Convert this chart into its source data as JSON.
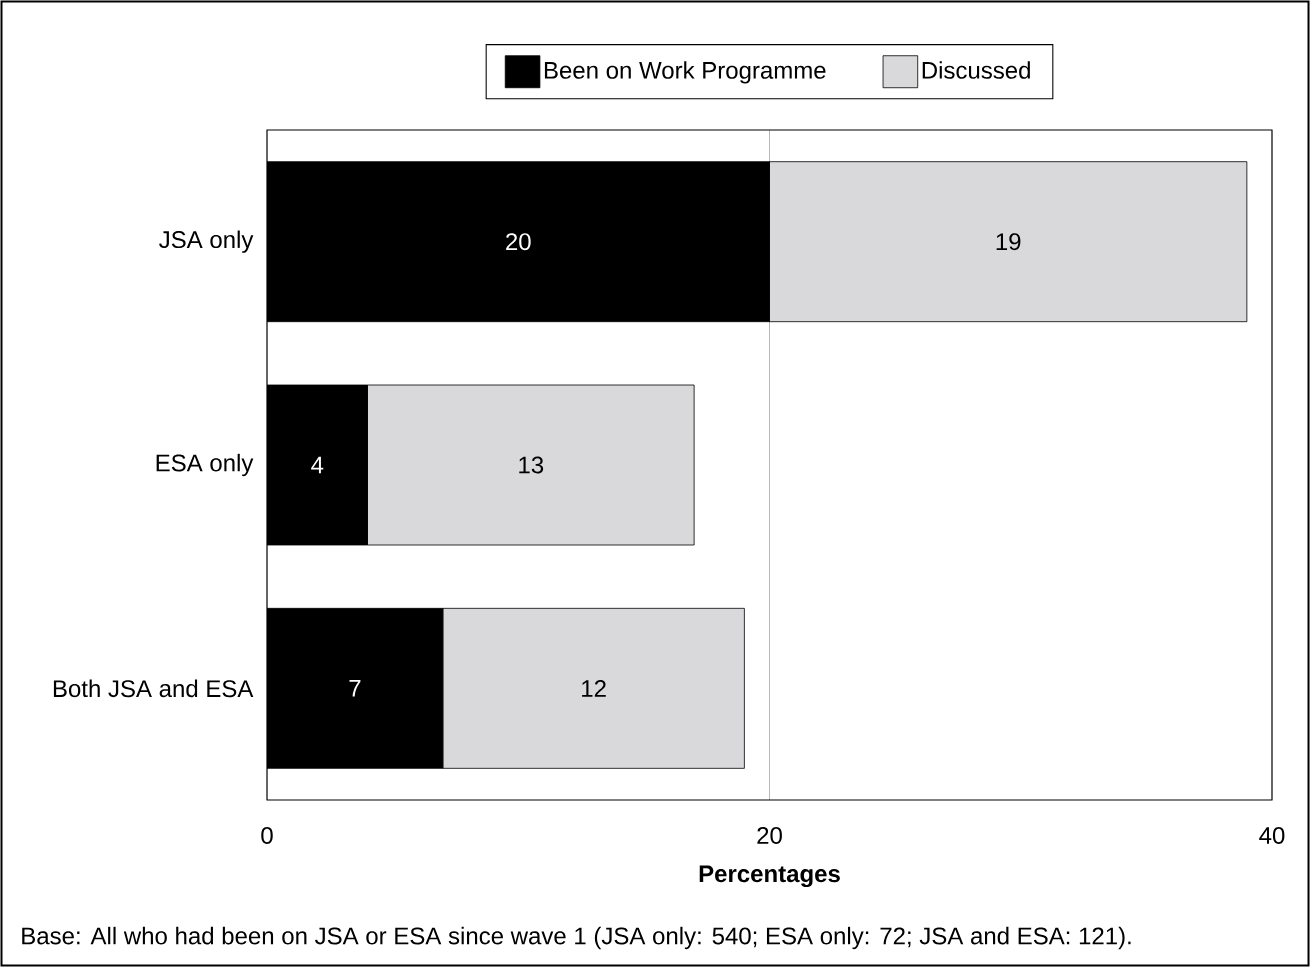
{
  "chart_data": {
    "type": "bar",
    "orientation": "horizontal",
    "stacked": true,
    "categories": [
      "JSA only",
      "ESA only",
      "Both JSA and ESA"
    ],
    "series": [
      {
        "name": "Been on Work Programme",
        "color": "#000000",
        "values": [
          20,
          4,
          7
        ]
      },
      {
        "name": "Discussed",
        "color": "#d9d9db",
        "values": [
          19,
          13,
          12
        ]
      }
    ],
    "xlim": [
      0,
      40
    ],
    "xticks": [
      0,
      20,
      40
    ],
    "xlabel": "Percentages",
    "grid": "x",
    "legend": "top",
    "data_labels": true,
    "annotations": [
      "Base: All who had been on JSA or ESA since wave 1 (JSA only: 540; ESA only: 72; JSA and ESA: 121)."
    ]
  }
}
